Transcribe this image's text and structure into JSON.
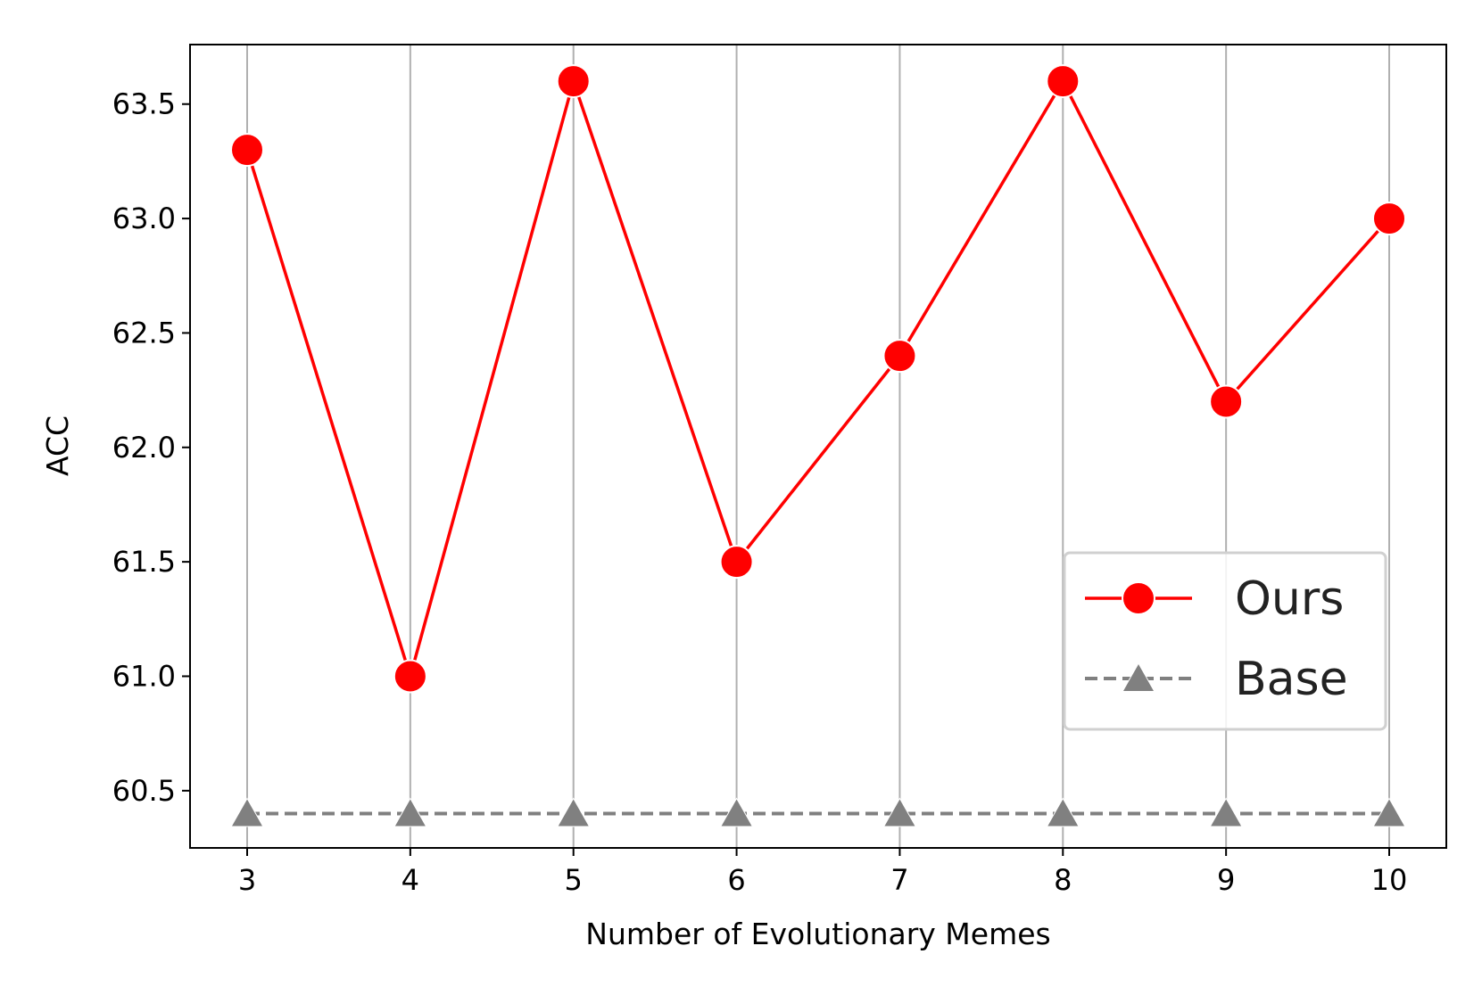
{
  "chart_data": {
    "type": "line",
    "title": "",
    "xlabel": "Number of Evolutionary Memes",
    "ylabel": "ACC",
    "x": [
      3,
      4,
      5,
      6,
      7,
      8,
      9,
      10
    ],
    "x_tick_labels": [
      "3",
      "4",
      "5",
      "6",
      "7",
      "8",
      "9",
      "10"
    ],
    "y_tick_values": [
      60.5,
      61.0,
      61.5,
      62.0,
      62.5,
      63.0,
      63.5
    ],
    "y_tick_labels": [
      "60.5",
      "61.0",
      "61.5",
      "62.0",
      "62.5",
      "63.0",
      "63.5"
    ],
    "xlim": [
      2.65,
      10.35
    ],
    "ylim": [
      60.25,
      63.76
    ],
    "grid": "vertical",
    "legend_position": "lower-right",
    "series": [
      {
        "name": "Ours",
        "values": [
          63.3,
          61.0,
          63.6,
          61.5,
          62.4,
          63.6,
          62.2,
          63.0
        ],
        "color": "#ff0000",
        "marker": "circle",
        "line_style": "solid"
      },
      {
        "name": "Base",
        "values": [
          60.4,
          60.4,
          60.4,
          60.4,
          60.4,
          60.4,
          60.4,
          60.4
        ],
        "color": "#808080",
        "marker": "triangle",
        "line_style": "dashed"
      }
    ]
  }
}
